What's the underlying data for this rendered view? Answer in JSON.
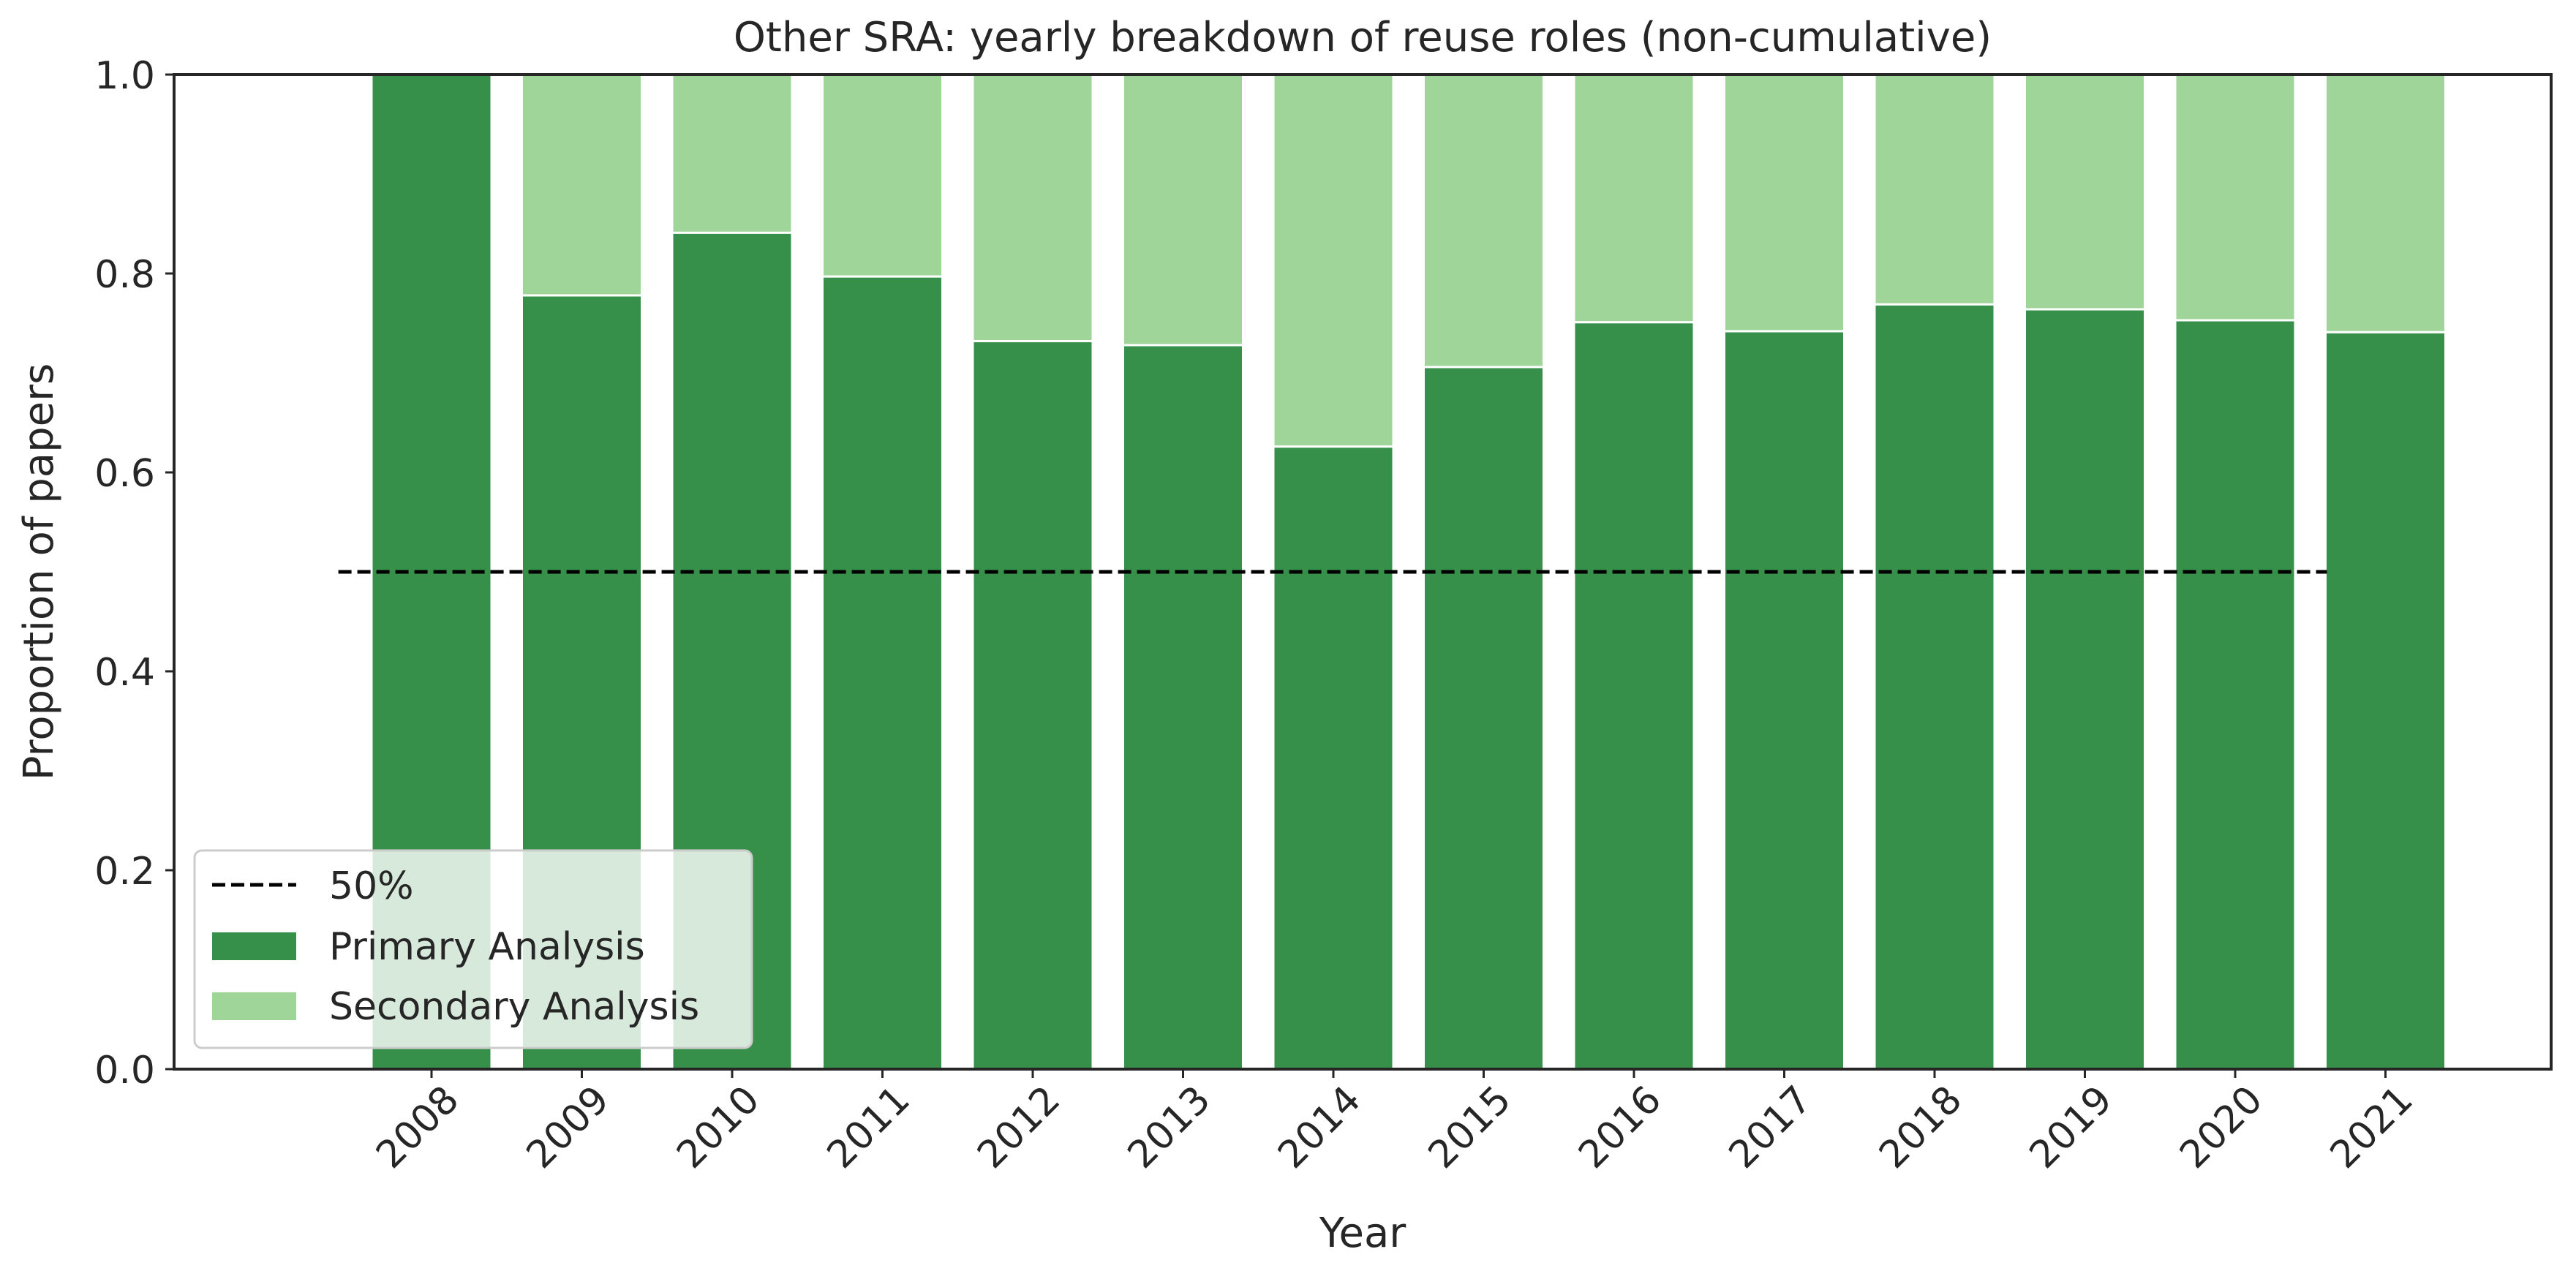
{
  "chart_data": {
    "type": "bar",
    "stacked": true,
    "title": "Other SRA: yearly breakdown of reuse roles (non-cumulative)",
    "xlabel": "Year",
    "ylabel": "Proportion of papers",
    "ylim": [
      0.0,
      1.0
    ],
    "yticks": [
      "0.0",
      "0.2",
      "0.4",
      "0.6",
      "0.8",
      "1.0"
    ],
    "categories": [
      "2008",
      "2009",
      "2010",
      "2011",
      "2012",
      "2013",
      "2014",
      "2015",
      "2016",
      "2017",
      "2018",
      "2019",
      "2020",
      "2021"
    ],
    "series": [
      {
        "name": "Primary Analysis",
        "color": "#37904a",
        "values": [
          1.0,
          0.778,
          0.841,
          0.797,
          0.732,
          0.728,
          0.626,
          0.706,
          0.751,
          0.742,
          0.769,
          0.764,
          0.753,
          0.741
        ]
      },
      {
        "name": "Secondary Analysis",
        "color": "#a0d59a",
        "values": [
          0.0,
          0.222,
          0.159,
          0.203,
          0.268,
          0.272,
          0.374,
          0.294,
          0.249,
          0.258,
          0.231,
          0.236,
          0.247,
          0.259
        ]
      }
    ],
    "reference_line": {
      "name": "50%",
      "value": 0.5,
      "style": "dashed",
      "color": "#000000"
    },
    "legend": {
      "placement": "lower-left",
      "entries": [
        "50%",
        "Primary Analysis",
        "Secondary Analysis"
      ]
    },
    "grid": false
  }
}
